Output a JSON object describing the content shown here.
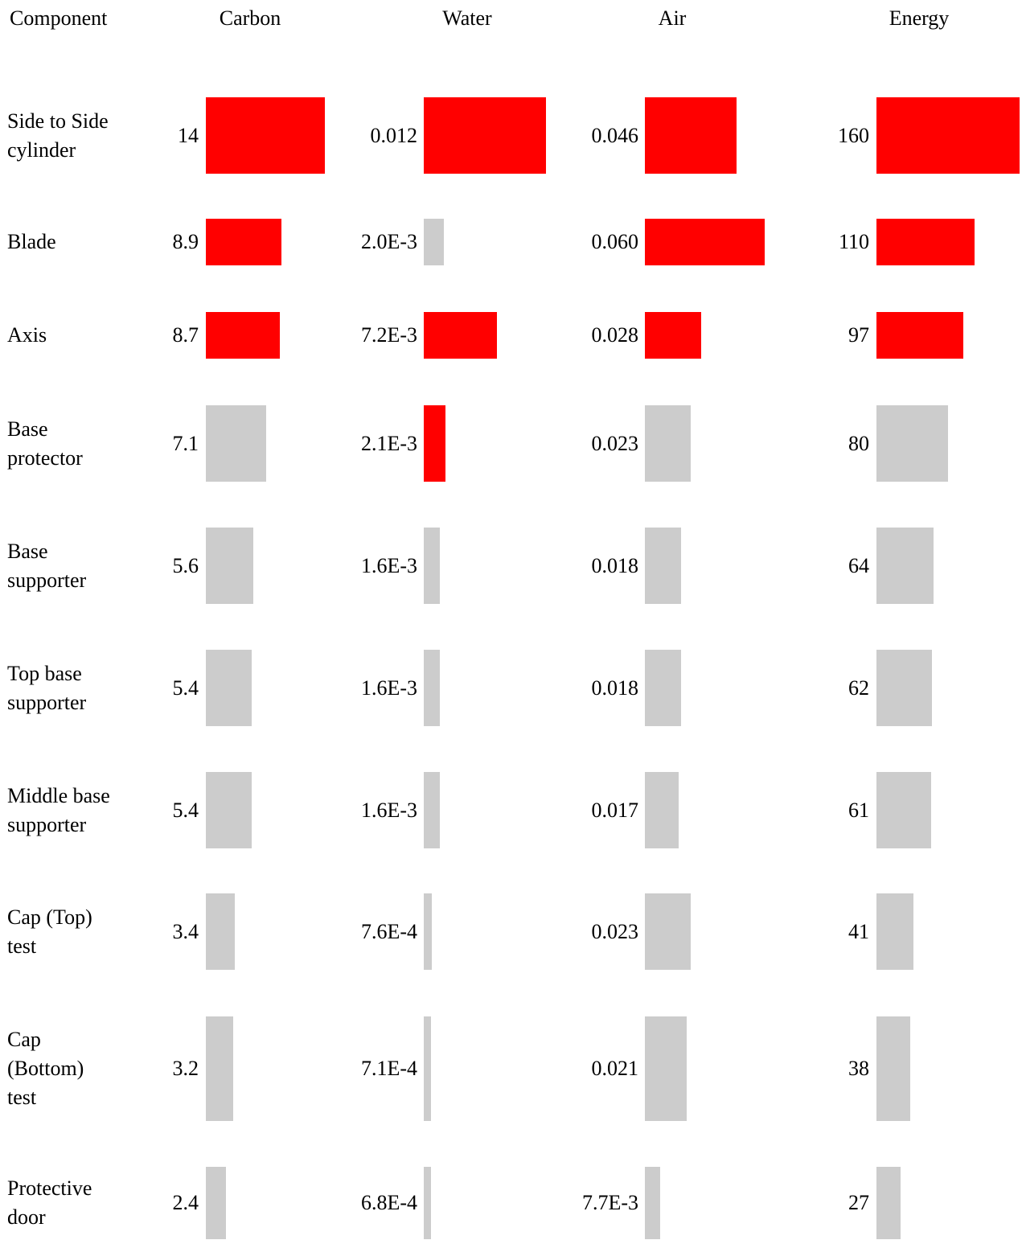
{
  "table": {
    "header": [
      "Component",
      "Carbon",
      "Water",
      "Air",
      "Energy"
    ],
    "highlight_color": "#ff0000",
    "base_color": "#cccccc",
    "rows": [
      {
        "label": [
          "Side to Side",
          "cylinder"
        ],
        "cells": [
          {
            "value": 14,
            "label": "14",
            "highlight": true
          },
          {
            "value": 0.012,
            "label": "0.012",
            "highlight": true
          },
          {
            "value": 0.046,
            "label": "0.046",
            "highlight": true
          },
          {
            "value": 160,
            "label": "160",
            "highlight": true
          }
        ]
      },
      {
        "label": [
          "Blade"
        ],
        "cells": [
          {
            "value": 8.9,
            "label": "8.9",
            "highlight": true
          },
          {
            "value": 0.002,
            "label": "2.0E-3",
            "highlight": false
          },
          {
            "value": 0.06,
            "label": "0.060",
            "highlight": true
          },
          {
            "value": 110,
            "label": "110",
            "highlight": true
          }
        ]
      },
      {
        "label": [
          "Axis"
        ],
        "cells": [
          {
            "value": 8.7,
            "label": "8.7",
            "highlight": true
          },
          {
            "value": 0.0072,
            "label": "7.2E-3",
            "highlight": true
          },
          {
            "value": 0.028,
            "label": "0.028",
            "highlight": true
          },
          {
            "value": 97,
            "label": "97",
            "highlight": true
          }
        ]
      },
      {
        "label": [
          "Base",
          "protector"
        ],
        "cells": [
          {
            "value": 7.1,
            "label": "7.1",
            "highlight": false
          },
          {
            "value": 0.0021,
            "label": "2.1E-3",
            "highlight": true
          },
          {
            "value": 0.023,
            "label": "0.023",
            "highlight": false
          },
          {
            "value": 80,
            "label": "80",
            "highlight": false
          }
        ]
      },
      {
        "label": [
          "Base",
          "supporter"
        ],
        "cells": [
          {
            "value": 5.6,
            "label": "5.6",
            "highlight": false
          },
          {
            "value": 0.0016,
            "label": "1.6E-3",
            "highlight": false
          },
          {
            "value": 0.018,
            "label": "0.018",
            "highlight": false
          },
          {
            "value": 64,
            "label": "64",
            "highlight": false
          }
        ]
      },
      {
        "label": [
          "Top base",
          "supporter"
        ],
        "cells": [
          {
            "value": 5.4,
            "label": "5.4",
            "highlight": false
          },
          {
            "value": 0.0016,
            "label": "1.6E-3",
            "highlight": false
          },
          {
            "value": 0.018,
            "label": "0.018",
            "highlight": false
          },
          {
            "value": 62,
            "label": "62",
            "highlight": false
          }
        ]
      },
      {
        "label": [
          "Middle base",
          "supporter"
        ],
        "cells": [
          {
            "value": 5.4,
            "label": "5.4",
            "highlight": false
          },
          {
            "value": 0.0016,
            "label": "1.6E-3",
            "highlight": false
          },
          {
            "value": 0.017,
            "label": "0.017",
            "highlight": false
          },
          {
            "value": 61,
            "label": "61",
            "highlight": false
          }
        ]
      },
      {
        "label": [
          "Cap (Top)",
          "test"
        ],
        "cells": [
          {
            "value": 3.4,
            "label": "3.4",
            "highlight": false
          },
          {
            "value": 0.00076,
            "label": "7.6E-4",
            "highlight": false
          },
          {
            "value": 0.023,
            "label": "0.023",
            "highlight": false
          },
          {
            "value": 41,
            "label": "41",
            "highlight": false
          }
        ]
      },
      {
        "label": [
          "Cap",
          "(Bottom)",
          "test"
        ],
        "cells": [
          {
            "value": 3.2,
            "label": "3.2",
            "highlight": false
          },
          {
            "value": 0.00071,
            "label": "7.1E-4",
            "highlight": false
          },
          {
            "value": 0.021,
            "label": "0.021",
            "highlight": false
          },
          {
            "value": 38,
            "label": "38",
            "highlight": false
          }
        ]
      },
      {
        "label": [
          "Protective",
          "door"
        ],
        "cells": [
          {
            "value": 2.4,
            "label": "2.4",
            "highlight": false
          },
          {
            "value": 0.00068,
            "label": "6.8E-4",
            "highlight": false
          },
          {
            "value": 0.0077,
            "label": "7.7E-3",
            "highlight": false
          },
          {
            "value": 27,
            "label": "27",
            "highlight": false
          }
        ]
      }
    ]
  }
}
